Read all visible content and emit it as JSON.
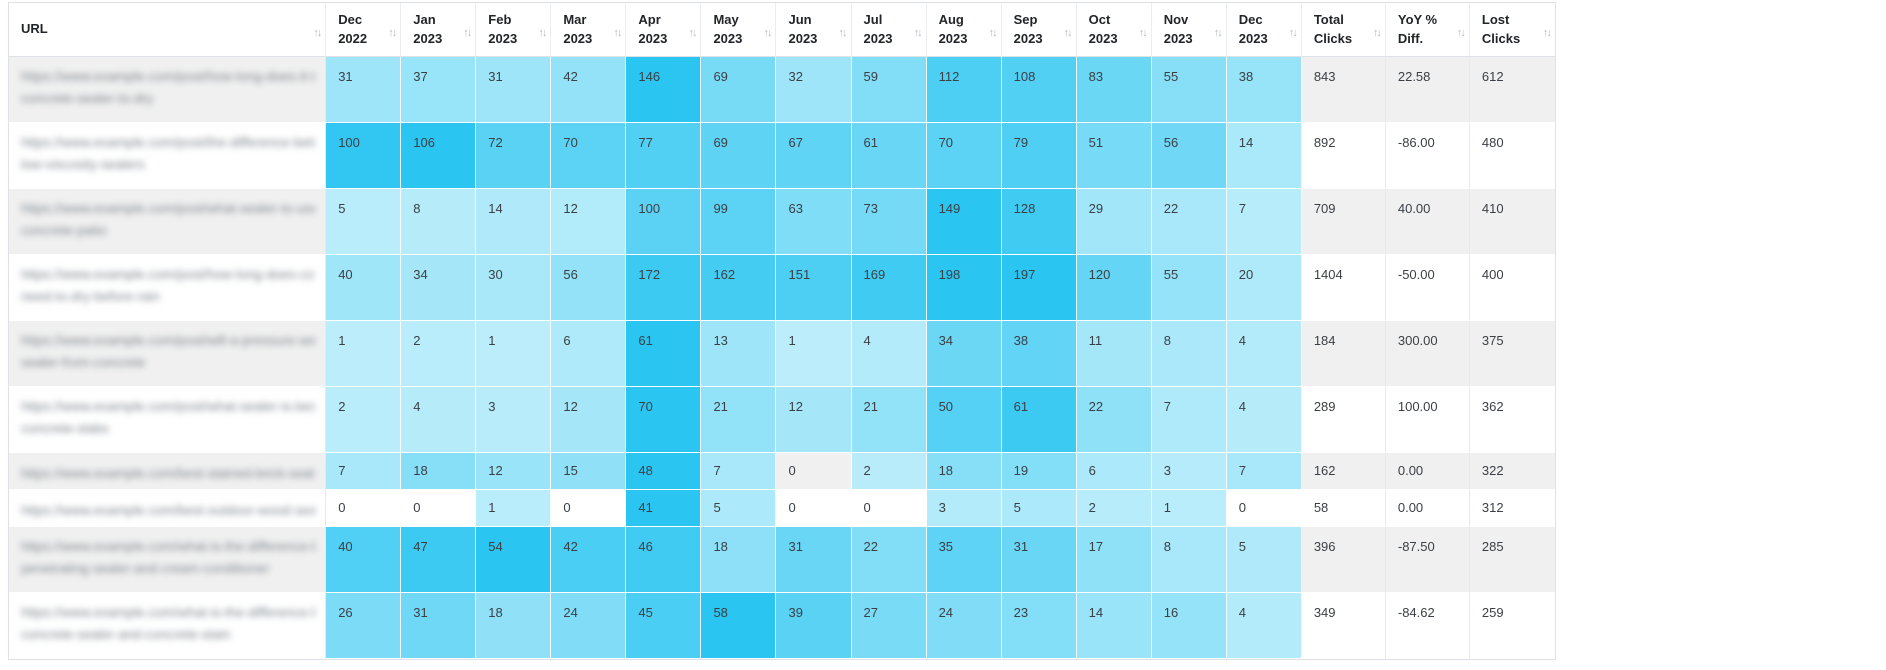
{
  "table": {
    "sort_icon": "↑↓",
    "columns": [
      {
        "label": "URL",
        "type": "url"
      },
      {
        "label": "Dec 2022",
        "type": "month"
      },
      {
        "label": "Jan 2023",
        "type": "month"
      },
      {
        "label": "Feb 2023",
        "type": "month"
      },
      {
        "label": "Mar 2023",
        "type": "month"
      },
      {
        "label": "Apr 2023",
        "type": "month"
      },
      {
        "label": "May 2023",
        "type": "month"
      },
      {
        "label": "Jun 2023",
        "type": "month"
      },
      {
        "label": "Jul 2023",
        "type": "month"
      },
      {
        "label": "Aug 2023",
        "type": "month"
      },
      {
        "label": "Sep 2023",
        "type": "month"
      },
      {
        "label": "Oct 2023",
        "type": "month"
      },
      {
        "label": "Nov 2023",
        "type": "month"
      },
      {
        "label": "Dec 2023",
        "type": "month"
      },
      {
        "label": "Total Clicks",
        "type": "metric"
      },
      {
        "label": "YoY % Diff.",
        "type": "metric"
      },
      {
        "label": "Lost Clicks",
        "type": "metric"
      }
    ],
    "rows": [
      {
        "url_lines": [
          "https://www.example.com/post/how-long-does-it-take-for",
          "concrete-sealer-to-dry"
        ],
        "monthly": [
          31,
          37,
          31,
          42,
          146,
          69,
          32,
          59,
          112,
          108,
          83,
          55,
          38
        ],
        "total": "843",
        "yoy": "22.58",
        "lost": "612"
      },
      {
        "url_lines": [
          "https://www.example.com/post/the-difference-between-high-and",
          "low-viscosity-sealers"
        ],
        "monthly": [
          100,
          106,
          72,
          70,
          77,
          69,
          67,
          61,
          70,
          79,
          51,
          56,
          14
        ],
        "total": "892",
        "yoy": "-86.00",
        "lost": "480"
      },
      {
        "url_lines": [
          "https://www.example.com/post/what-sealer-to-use-on-your-new-lovely",
          "concrete-patio"
        ],
        "monthly": [
          5,
          8,
          14,
          12,
          100,
          99,
          63,
          73,
          149,
          128,
          29,
          22,
          7
        ],
        "total": "709",
        "yoy": "40.00",
        "lost": "410"
      },
      {
        "url_lines": [
          "https://www.example.com/post/how-long-does-concrete-sealer",
          "need-to-dry-before-rain"
        ],
        "monthly": [
          40,
          34,
          30,
          56,
          172,
          162,
          151,
          169,
          198,
          197,
          120,
          55,
          20
        ],
        "total": "1404",
        "yoy": "-50.00",
        "lost": "400"
      },
      {
        "url_lines": [
          "https://www.example.com/post/will-a-pressure-washer-remove",
          "sealer-from-concrete"
        ],
        "monthly": [
          1,
          2,
          1,
          6,
          61,
          13,
          1,
          4,
          34,
          38,
          11,
          8,
          4
        ],
        "total": "184",
        "yoy": "300.00",
        "lost": "375"
      },
      {
        "url_lines": [
          "https://www.example.com/post/what-sealer-is-best-for-your",
          "concrete-slabs"
        ],
        "monthly": [
          2,
          4,
          3,
          12,
          70,
          21,
          12,
          21,
          50,
          61,
          22,
          7,
          4
        ],
        "total": "289",
        "yoy": "100.00",
        "lost": "362"
      },
      {
        "url_lines": [
          "https://www.example.com/best-stained-brick-sealer"
        ],
        "monthly": [
          7,
          18,
          12,
          15,
          48,
          7,
          0,
          2,
          18,
          19,
          6,
          3,
          7
        ],
        "total": "162",
        "yoy": "0.00",
        "lost": "322"
      },
      {
        "url_lines": [
          "https://www.example.com/best-outdoor-wood-sealer"
        ],
        "monthly": [
          0,
          0,
          1,
          0,
          41,
          5,
          0,
          0,
          3,
          5,
          2,
          1,
          0
        ],
        "total": "58",
        "yoy": "0.00",
        "lost": "312"
      },
      {
        "url_lines": [
          "https://www.example.com/what-is-the-difference-between",
          "penetrating-sealer-and-cream-conditioner"
        ],
        "monthly": [
          40,
          47,
          54,
          42,
          46,
          18,
          31,
          22,
          35,
          31,
          17,
          8,
          5
        ],
        "total": "396",
        "yoy": "-87.50",
        "lost": "285"
      },
      {
        "url_lines": [
          "https://www.example.com/what-is-the-difference-between",
          "concrete-sealer-and-concrete-stain"
        ],
        "monthly": [
          26,
          31,
          18,
          24,
          45,
          58,
          39,
          27,
          24,
          23,
          14,
          16,
          4
        ],
        "total": "349",
        "yoy": "-84.62",
        "lost": "259"
      }
    ]
  },
  "colors": {
    "heat_low": "#beeefb",
    "heat_high": "#2ac5f1",
    "stripe": "#f0f0f0",
    "border": "#dee2e6",
    "header_text": "#212529",
    "value_text": "#3b4046"
  },
  "layout_widths": {
    "url_col": 317,
    "month_col": 75,
    "total_col": 84,
    "yoy_col": 84,
    "lost_col": 85
  }
}
